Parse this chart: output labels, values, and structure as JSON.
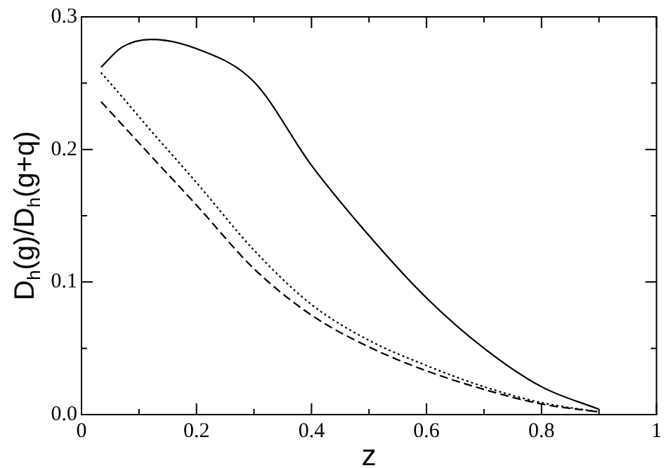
{
  "chart_data": {
    "type": "line",
    "xlabel": "z",
    "ylabel": "D$_{h}$(g)/D$_{h}$(g+q)",
    "x": [
      0.034,
      0.07,
      0.121,
      0.2,
      0.3,
      0.4,
      0.5,
      0.6,
      0.7,
      0.8,
      0.9
    ],
    "series": [
      {
        "color": "#000000",
        "line_style": "solid",
        "values": [
          0.262,
          0.277,
          0.283,
          0.276,
          0.251,
          0.188,
          0.135,
          0.088,
          0.05,
          0.021,
          0.004
        ]
      },
      {
        "color": "#000000",
        "line_style": "dotted",
        "values": [
          0.258,
          0.24,
          0.214,
          0.175,
          0.124,
          0.083,
          0.056,
          0.037,
          0.021,
          0.009,
          0.002
        ]
      },
      {
        "color": "#000000",
        "line_style": "dashed",
        "values": [
          0.236,
          0.219,
          0.195,
          0.158,
          0.11,
          0.075,
          0.051,
          0.033,
          0.019,
          0.008,
          0.002
        ]
      }
    ],
    "xlim": [
      0,
      1
    ],
    "ylim": [
      0,
      0.3
    ],
    "xticks": [
      0,
      {
        "value": 0.1,
        "label": null
      },
      "0.2",
      {
        "value": 0.3,
        "label": null
      },
      "0.4",
      {
        "value": 0.5,
        "label": null
      },
      "0.6",
      {
        "value": 0.7,
        "label": null
      },
      "0.8",
      {
        "value": 0.9,
        "label": null
      },
      1
    ],
    "yticks": [
      {
        "value": 0,
        "label": "0.0"
      },
      {
        "value": 0.05,
        "label": null
      },
      0.1,
      {
        "value": 0.15,
        "label": null
      },
      0.2,
      {
        "value": 0.25,
        "label": null
      },
      0.3
    ],
    "grid": false,
    "legend": false,
    "marker": "none"
  }
}
